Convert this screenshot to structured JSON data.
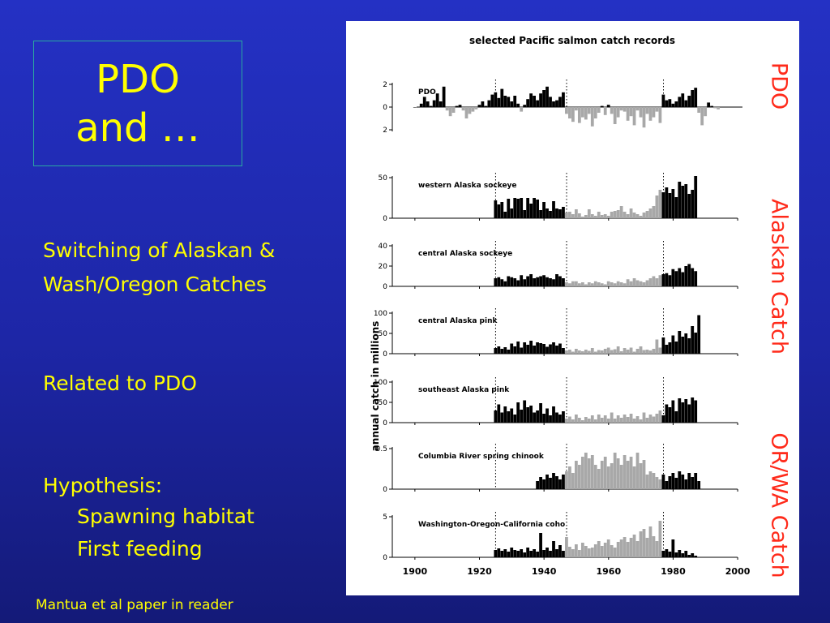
{
  "slide": {
    "title_line1": "PDO",
    "title_line2": "and …",
    "bullet1_line1": "Switching of Alaskan &",
    "bullet1_line2": "Wash/Oregon Catches",
    "bullet2": "Related to PDO",
    "bullet3_head": "Hypothesis:",
    "bullet3_sub1": "Spawning habitat",
    "bullet3_sub2": "First feeding",
    "footer": "Mantua et al paper in reader",
    "side_labels": {
      "pdo": "PDO",
      "alaskan": "Alaskan Catch",
      "orwa": "OR/WA Catch"
    },
    "colors": {
      "background": "#1f29b3",
      "text": "#ffff00",
      "side_label": "#ff2a1a",
      "bar_black": "#000000",
      "bar_gray": "#a8a8a8"
    }
  },
  "chart_data": {
    "type": "bar",
    "title": "selected Pacific salmon catch records",
    "ylabel": "annual catch in millions",
    "xticks": [
      1900,
      1920,
      1940,
      1960,
      1980,
      2000
    ],
    "regime_shifts": [
      1925,
      1947,
      1977
    ],
    "panels": [
      {
        "name": "PDO",
        "label": "PDO",
        "ylim": [
          -2,
          2
        ],
        "yticks": [
          "2",
          "0",
          "2"
        ],
        "x_start": 1900,
        "values": [
          0.0,
          0.0,
          0.3,
          0.9,
          0.5,
          0.1,
          0.6,
          1.2,
          0.5,
          1.8,
          -0.3,
          -0.8,
          -0.5,
          0.1,
          0.2,
          -0.3,
          -1.0,
          -0.6,
          -0.4,
          -0.2,
          0.2,
          0.5,
          0.1,
          0.6,
          1.1,
          1.3,
          0.8,
          1.6,
          1.0,
          0.9,
          0.5,
          1.0,
          0.3,
          -0.4,
          0.2,
          0.7,
          1.2,
          1.0,
          0.6,
          1.2,
          1.5,
          1.8,
          0.9,
          0.5,
          0.6,
          0.9,
          1.3,
          -0.6,
          -1.0,
          -1.3,
          -0.3,
          -1.4,
          -0.9,
          -1.1,
          -0.6,
          -1.7,
          -1.0,
          -0.5,
          0.1,
          -0.7,
          0.2,
          -0.6,
          -1.5,
          -0.9,
          -0.3,
          -0.4,
          -1.2,
          -0.8,
          -1.6,
          -0.3,
          -0.9,
          -1.8,
          -0.6,
          -1.2,
          -0.9,
          -0.4,
          -1.4,
          1.1,
          0.6,
          0.7,
          0.3,
          0.5,
          0.9,
          1.2,
          0.6,
          1.0,
          1.5,
          1.7,
          -0.5,
          -1.6,
          -0.8,
          0.4,
          0.1,
          -0.1,
          -0.2
        ]
      },
      {
        "name": "western Alaska sockeye",
        "label": "western Alaska sockeye",
        "ylim": [
          0,
          50
        ],
        "yticks": [
          "50",
          "0"
        ],
        "x_start": 1925,
        "values": [
          22,
          17,
          20,
          8,
          24,
          12,
          25,
          24,
          25,
          10,
          25,
          18,
          25,
          23,
          10,
          20,
          12,
          9,
          21,
          12,
          11,
          14,
          7,
          8,
          5,
          11,
          6,
          2,
          4,
          11,
          5,
          3,
          8,
          4,
          5,
          3,
          8,
          9,
          10,
          15,
          8,
          5,
          12,
          7,
          5,
          3,
          7,
          9,
          12,
          15,
          28,
          35,
          32,
          38,
          31,
          36,
          26,
          45,
          40,
          42,
          30,
          35,
          52
        ]
      },
      {
        "name": "central Alaska sockeye",
        "label": "central Alaska sockeye",
        "ylim": [
          0,
          40
        ],
        "yticks": [
          "40",
          "20",
          "0"
        ],
        "x_start": 1925,
        "values": [
          8,
          9,
          7,
          5,
          10,
          9,
          8,
          6,
          11,
          7,
          10,
          12,
          8,
          9,
          10,
          11,
          9,
          8,
          7,
          12,
          10,
          8,
          4,
          3,
          5,
          5,
          3,
          4,
          2,
          4,
          3,
          5,
          4,
          3,
          2,
          5,
          4,
          3,
          5,
          4,
          3,
          7,
          5,
          8,
          6,
          5,
          4,
          6,
          8,
          10,
          8,
          11,
          12,
          13,
          11,
          17,
          15,
          18,
          14,
          20,
          22,
          18,
          15
        ]
      },
      {
        "name": "central Alaska pink",
        "label": "central Alaska pink",
        "ylim": [
          0,
          100
        ],
        "yticks": [
          "100",
          "50",
          "0"
        ],
        "x_start": 1925,
        "values": [
          14,
          18,
          12,
          16,
          10,
          25,
          18,
          30,
          15,
          28,
          22,
          32,
          20,
          28,
          26,
          24,
          17,
          23,
          28,
          20,
          25,
          14,
          8,
          10,
          5,
          12,
          8,
          6,
          10,
          7,
          14,
          5,
          9,
          8,
          12,
          15,
          9,
          11,
          18,
          6,
          14,
          10,
          15,
          5,
          12,
          18,
          9,
          10,
          8,
          12,
          35,
          15,
          40,
          22,
          28,
          45,
          30,
          56,
          42,
          50,
          38,
          68,
          52,
          95
        ]
      },
      {
        "name": "southeast Alaska pink",
        "label": "southeast Alaska pink",
        "ylim": [
          0,
          100
        ],
        "yticks": [
          "100",
          "50",
          "0"
        ],
        "x_start": 1925,
        "values": [
          30,
          45,
          25,
          40,
          28,
          35,
          20,
          50,
          32,
          55,
          38,
          42,
          25,
          30,
          48,
          22,
          35,
          18,
          40,
          25,
          20,
          28,
          10,
          15,
          8,
          20,
          12,
          6,
          14,
          10,
          18,
          8,
          20,
          12,
          18,
          10,
          25,
          10,
          18,
          12,
          20,
          14,
          22,
          10,
          16,
          8,
          25,
          12,
          20,
          15,
          22,
          30,
          18,
          45,
          38,
          55,
          28,
          60,
          50,
          58,
          45,
          62,
          55
        ]
      },
      {
        "name": "Columbia River spring chinook",
        "label": "Columbia River spring chinook",
        "ylim": [
          0,
          0.5
        ],
        "yticks": [
          "0.5",
          "0"
        ],
        "x_start": 1938,
        "values": [
          0.1,
          0.15,
          0.12,
          0.18,
          0.14,
          0.2,
          0.16,
          0.12,
          0.18,
          0.22,
          0.28,
          0.2,
          0.35,
          0.3,
          0.4,
          0.45,
          0.38,
          0.42,
          0.3,
          0.25,
          0.35,
          0.4,
          0.28,
          0.32,
          0.45,
          0.38,
          0.3,
          0.42,
          0.35,
          0.4,
          0.28,
          0.45,
          0.32,
          0.36,
          0.18,
          0.22,
          0.2,
          0.15,
          0.12,
          0.18,
          0.1,
          0.16,
          0.2,
          0.14,
          0.22,
          0.18,
          0.12,
          0.2,
          0.15,
          0.2,
          0.1
        ]
      },
      {
        "name": "Washington-Oregon-California coho",
        "label": "Washington-Oregon-California coho",
        "ylim": [
          0,
          5
        ],
        "yticks": [
          "5",
          "0"
        ],
        "x_start": 1925,
        "values": [
          0.9,
          1.1,
          0.8,
          1.0,
          0.7,
          1.2,
          0.9,
          0.8,
          1.0,
          0.6,
          1.2,
          0.8,
          1.0,
          0.7,
          3.0,
          0.9,
          1.2,
          0.8,
          2.0,
          1.0,
          1.5,
          0.8,
          2.5,
          1.3,
          1.0,
          1.6,
          0.9,
          1.8,
          1.4,
          1.1,
          1.2,
          1.6,
          2.0,
          1.4,
          1.8,
          2.2,
          1.5,
          1.2,
          1.9,
          2.2,
          2.5,
          1.9,
          2.4,
          2.8,
          2.0,
          3.2,
          3.5,
          2.4,
          3.8,
          2.6,
          2.0,
          4.5,
          0.8,
          1.0,
          0.7,
          2.2,
          0.6,
          0.9,
          0.5,
          0.8,
          0.3,
          0.5,
          0.2
        ]
      }
    ]
  }
}
